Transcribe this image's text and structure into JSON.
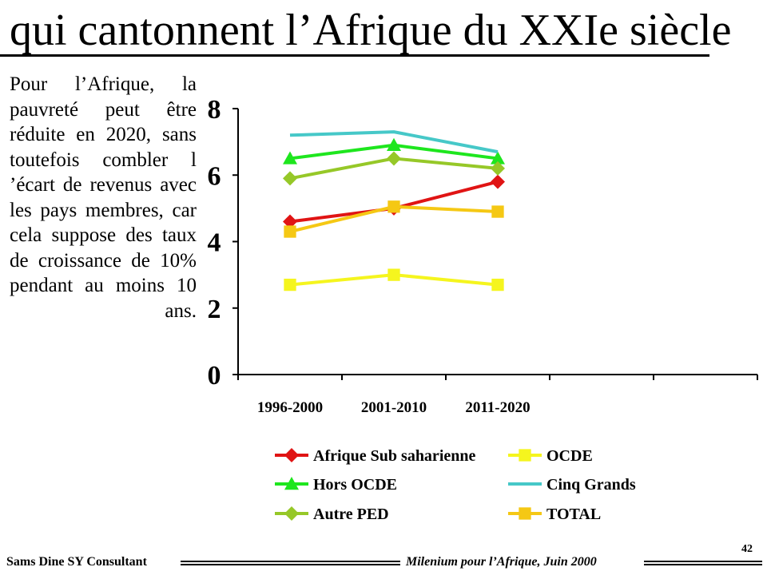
{
  "header": {
    "title": "qui cantonnent l’Afrique du XXIe siècle"
  },
  "sidebar": {
    "text": "Pour l’Afrique, la pauvreté peut être réduite en 2020, sans toutefois combler l ’écart de revenus avec les pays membres, car cela suppose des taux de croissance de 10% pendant au moins 10 ans."
  },
  "footer": {
    "left": "Sams Dine SY Consultant",
    "right": "Milenium pour l’Afrique, Juin 2000",
    "page_number": "42"
  },
  "chart_data": {
    "type": "line",
    "categories": [
      "1996-2000",
      "2001-2010",
      "2011-2020"
    ],
    "extra_empty_categories": 2,
    "ylim": [
      0,
      8
    ],
    "yticks": [
      0,
      2,
      4,
      6,
      8
    ],
    "grid": false,
    "legend_position": "bottom",
    "series": [
      {
        "name": "Afrique Sub saharienne",
        "values": [
          4.6,
          5.0,
          5.8
        ],
        "color": "#e01414",
        "marker": "diamond"
      },
      {
        "name": "OCDE",
        "values": [
          2.7,
          3.0,
          2.7
        ],
        "color": "#f5f51e",
        "marker": "square"
      },
      {
        "name": "Hors OCDE",
        "values": [
          6.5,
          6.9,
          6.5
        ],
        "color": "#1ee61e",
        "marker": "triangle"
      },
      {
        "name": "Cinq Grands",
        "values": [
          7.2,
          7.3,
          6.7
        ],
        "color": "#46c8c8",
        "marker": "none"
      },
      {
        "name": "Autre PED",
        "values": [
          5.9,
          6.5,
          6.2
        ],
        "color": "#96c828",
        "marker": "diamond"
      },
      {
        "name": "TOTAL",
        "values": [
          4.3,
          5.05,
          4.9
        ],
        "color": "#f5c814",
        "marker": "square"
      }
    ]
  }
}
